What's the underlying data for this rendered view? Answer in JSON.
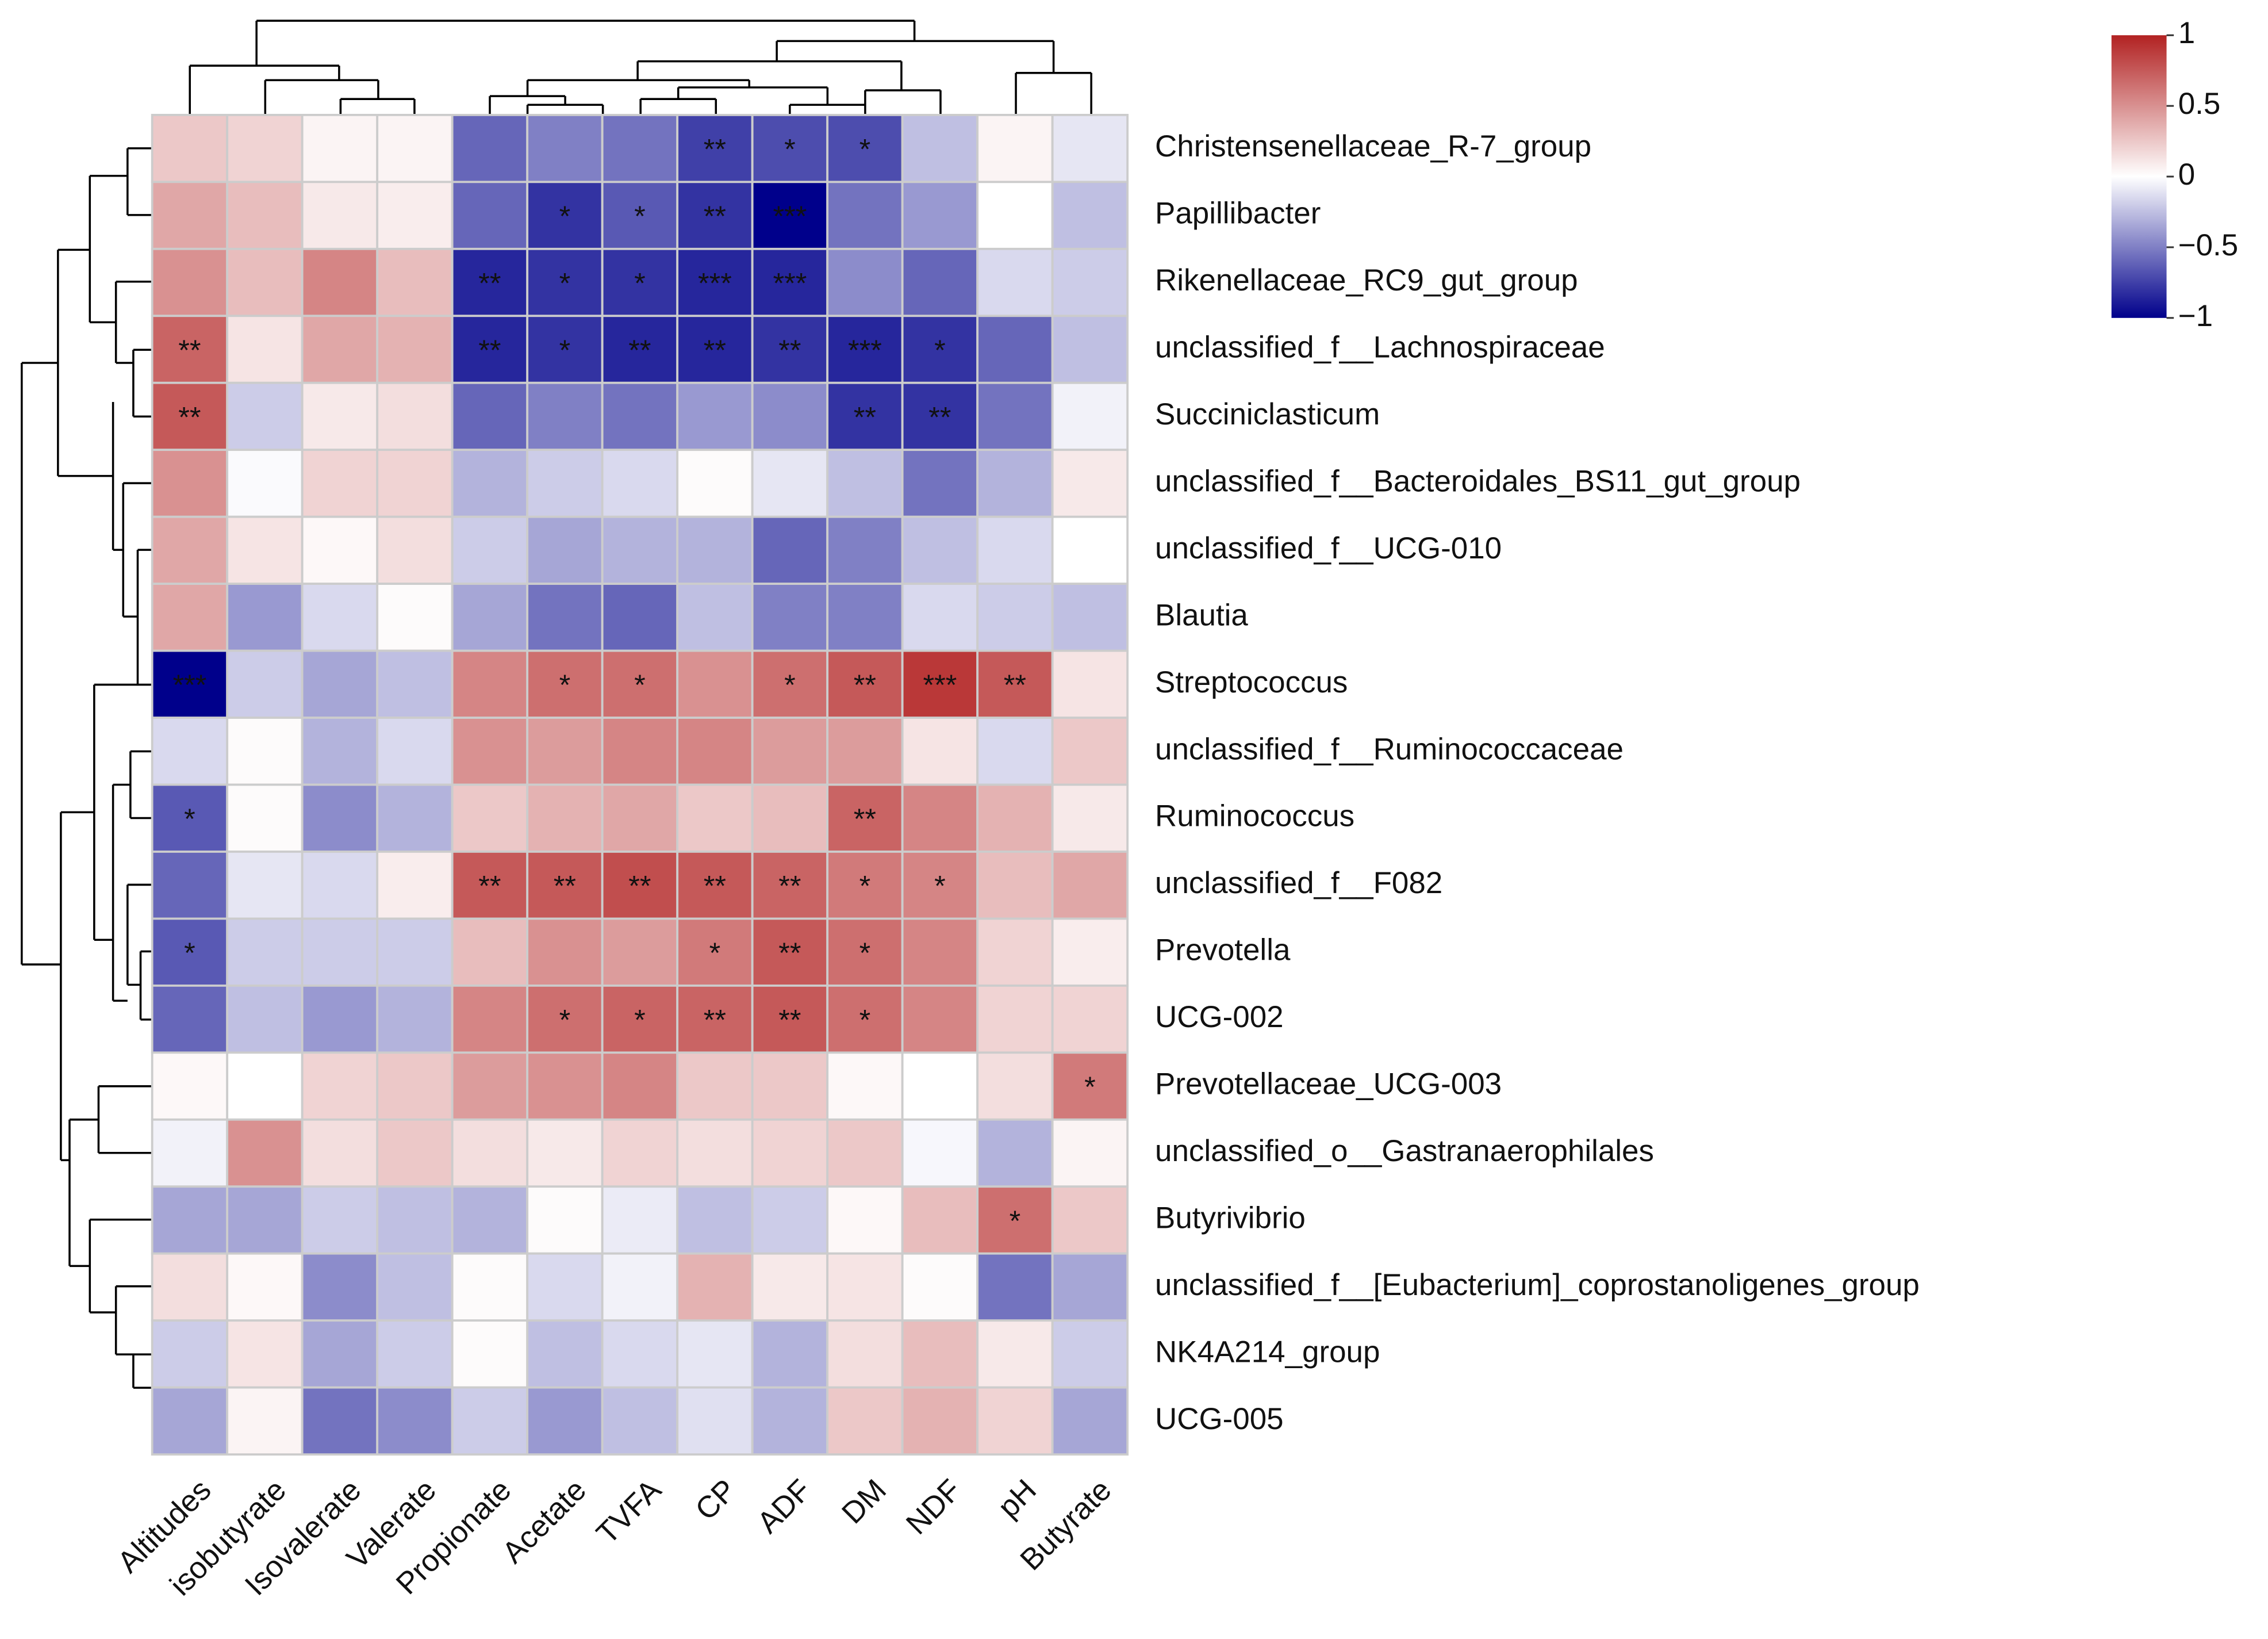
{
  "chart_data": {
    "type": "heatmap",
    "categories": [
      "Altitudes",
      "isobutyrate",
      "Isovalerate",
      "Valerate",
      "Propionate",
      "Acetate",
      "TVFA",
      "CP",
      "ADF",
      "DM",
      "NDF",
      "pH",
      "Butyrate"
    ],
    "rows": [
      "Christensenellaceae_R-7_group",
      "Papillibacter",
      "Rikenellaceae_RC9_gut_group",
      "unclassified_f__Lachnospiraceae",
      "Succiniclasticum",
      "unclassified_f__Bacteroidales_BS11_gut_group",
      "unclassified_f__UCG-010",
      "Blautia",
      "Streptococcus",
      "unclassified_f__Ruminococcaceae",
      "Ruminococcus",
      "unclassified_f__F082",
      "Prevotella",
      "UCG-002",
      "Prevotellaceae_UCG-003",
      "unclassified_o__Gastranaerophilales",
      "Butyrivibrio",
      "unclassified_f__[Eubacterium]_coprostanoligenes_group",
      "NK4A214_group",
      "UCG-005"
    ],
    "values": [
      [
        0.25,
        0.2,
        0.05,
        0.05,
        -0.6,
        -0.5,
        -0.55,
        -0.75,
        -0.7,
        -0.7,
        -0.25,
        0.05,
        -0.1
      ],
      [
        0.4,
        0.3,
        0.1,
        0.08,
        -0.6,
        -0.8,
        -0.65,
        -0.8,
        -1.0,
        -0.55,
        -0.4,
        0.0,
        -0.25
      ],
      [
        0.5,
        0.3,
        0.55,
        0.3,
        -0.85,
        -0.8,
        -0.8,
        -0.85,
        -0.85,
        -0.45,
        -0.6,
        -0.15,
        -0.2
      ],
      [
        0.7,
        0.12,
        0.4,
        0.35,
        -0.85,
        -0.8,
        -0.85,
        -0.85,
        -0.8,
        -0.85,
        -0.8,
        -0.6,
        -0.25
      ],
      [
        0.75,
        -0.2,
        0.1,
        0.15,
        -0.6,
        -0.5,
        -0.55,
        -0.4,
        -0.45,
        -0.8,
        -0.8,
        -0.55,
        -0.05
      ],
      [
        0.5,
        -0.02,
        0.2,
        0.2,
        -0.3,
        -0.2,
        -0.15,
        0.02,
        -0.1,
        -0.25,
        -0.55,
        -0.3,
        0.1
      ],
      [
        0.4,
        0.12,
        0.03,
        0.15,
        -0.2,
        -0.35,
        -0.3,
        -0.3,
        -0.6,
        -0.5,
        -0.25,
        -0.15,
        0.0
      ],
      [
        0.4,
        -0.4,
        -0.15,
        0.02,
        -0.35,
        -0.55,
        -0.6,
        -0.25,
        -0.5,
        -0.5,
        -0.15,
        -0.2,
        -0.25
      ],
      [
        -1.0,
        -0.2,
        -0.35,
        -0.25,
        0.55,
        0.65,
        0.65,
        0.5,
        0.65,
        0.75,
        0.9,
        0.75,
        0.12
      ],
      [
        -0.15,
        0.02,
        -0.3,
        -0.15,
        0.5,
        0.45,
        0.55,
        0.55,
        0.45,
        0.45,
        0.12,
        -0.15,
        0.25
      ],
      [
        -0.65,
        0.02,
        -0.45,
        -0.3,
        0.25,
        0.35,
        0.4,
        0.25,
        0.3,
        0.7,
        0.55,
        0.35,
        0.1
      ],
      [
        -0.6,
        -0.1,
        -0.15,
        0.08,
        0.75,
        0.75,
        0.8,
        0.75,
        0.7,
        0.6,
        0.55,
        0.3,
        0.4
      ],
      [
        -0.65,
        -0.2,
        -0.2,
        -0.2,
        0.3,
        0.5,
        0.45,
        0.6,
        0.75,
        0.65,
        0.55,
        0.2,
        0.08
      ],
      [
        -0.6,
        -0.25,
        -0.4,
        -0.3,
        0.55,
        0.65,
        0.7,
        0.7,
        0.75,
        0.65,
        0.55,
        0.2,
        0.2
      ],
      [
        0.03,
        0.0,
        0.2,
        0.25,
        0.45,
        0.5,
        0.55,
        0.25,
        0.25,
        0.03,
        0.0,
        0.15,
        0.6
      ],
      [
        -0.05,
        0.5,
        0.15,
        0.25,
        0.15,
        0.1,
        0.2,
        0.15,
        0.2,
        0.25,
        -0.03,
        -0.3,
        0.05
      ],
      [
        -0.35,
        -0.35,
        -0.2,
        -0.25,
        -0.3,
        0.02,
        -0.08,
        -0.25,
        -0.2,
        0.03,
        0.3,
        0.65,
        0.25
      ],
      [
        0.15,
        0.03,
        -0.45,
        -0.25,
        0.02,
        -0.15,
        -0.05,
        0.35,
        0.1,
        0.12,
        0.02,
        -0.55,
        -0.35
      ],
      [
        -0.2,
        0.12,
        -0.35,
        -0.2,
        0.02,
        -0.25,
        -0.15,
        -0.1,
        -0.3,
        0.15,
        0.3,
        0.1,
        -0.2
      ],
      [
        -0.35,
        0.05,
        -0.55,
        -0.45,
        -0.2,
        -0.4,
        -0.25,
        -0.12,
        -0.3,
        0.25,
        0.35,
        0.2,
        -0.35
      ]
    ],
    "annotations": [
      [
        null,
        null,
        null,
        null,
        null,
        null,
        null,
        "**",
        "*",
        "*",
        null,
        null,
        null
      ],
      [
        null,
        null,
        null,
        null,
        null,
        "*",
        "*",
        "**",
        "***",
        null,
        null,
        null,
        null
      ],
      [
        null,
        null,
        null,
        null,
        "**",
        "*",
        "*",
        "***",
        "***",
        null,
        null,
        null,
        null
      ],
      [
        "**",
        null,
        null,
        null,
        "**",
        "*",
        "**",
        "**",
        "**",
        "***",
        "*",
        null,
        null
      ],
      [
        "**",
        null,
        null,
        null,
        null,
        null,
        null,
        null,
        null,
        "**",
        "**",
        null,
        null
      ],
      [
        null,
        null,
        null,
        null,
        null,
        null,
        null,
        null,
        null,
        null,
        null,
        null,
        null
      ],
      [
        null,
        null,
        null,
        null,
        null,
        null,
        null,
        null,
        null,
        null,
        null,
        null,
        null
      ],
      [
        null,
        null,
        null,
        null,
        null,
        null,
        null,
        null,
        null,
        null,
        null,
        null,
        null
      ],
      [
        "***",
        null,
        null,
        null,
        null,
        "*",
        "*",
        null,
        "*",
        "**",
        "***",
        "**",
        null
      ],
      [
        null,
        null,
        null,
        null,
        null,
        null,
        null,
        null,
        null,
        null,
        null,
        null,
        null
      ],
      [
        "*",
        null,
        null,
        null,
        null,
        null,
        null,
        null,
        null,
        "**",
        null,
        null,
        null
      ],
      [
        null,
        null,
        null,
        null,
        "**",
        "**",
        "**",
        "**",
        "**",
        "*",
        "*",
        null,
        null
      ],
      [
        "*",
        null,
        null,
        null,
        null,
        null,
        null,
        "*",
        "**",
        "*",
        null,
        null,
        null
      ],
      [
        null,
        null,
        null,
        null,
        null,
        "*",
        "*",
        "**",
        "**",
        "*",
        null,
        null,
        null
      ],
      [
        null,
        null,
        null,
        null,
        null,
        null,
        null,
        null,
        null,
        null,
        null,
        null,
        "*"
      ],
      [
        null,
        null,
        null,
        null,
        null,
        null,
        null,
        null,
        null,
        null,
        null,
        null,
        null
      ],
      [
        null,
        null,
        null,
        null,
        null,
        null,
        null,
        null,
        null,
        null,
        null,
        "*",
        null
      ],
      [
        null,
        null,
        null,
        null,
        null,
        null,
        null,
        null,
        null,
        null,
        null,
        null,
        null
      ],
      [
        null,
        null,
        null,
        null,
        null,
        null,
        null,
        null,
        null,
        null,
        null,
        null,
        null
      ],
      [
        null,
        null,
        null,
        null,
        null,
        null,
        null,
        null,
        null,
        null,
        null,
        null,
        null
      ]
    ],
    "zlim": [
      -1,
      1
    ],
    "zticks": [
      1,
      0.5,
      0,
      {
        "value": -0.5,
        "label": "−0.5"
      },
      {
        "value": -1,
        "label": "−1"
      }
    ],
    "colors": {
      "low": "#00008b",
      "mid": "#ffffff",
      "high": "#b22222"
    },
    "cell_border": "#cccccc"
  }
}
